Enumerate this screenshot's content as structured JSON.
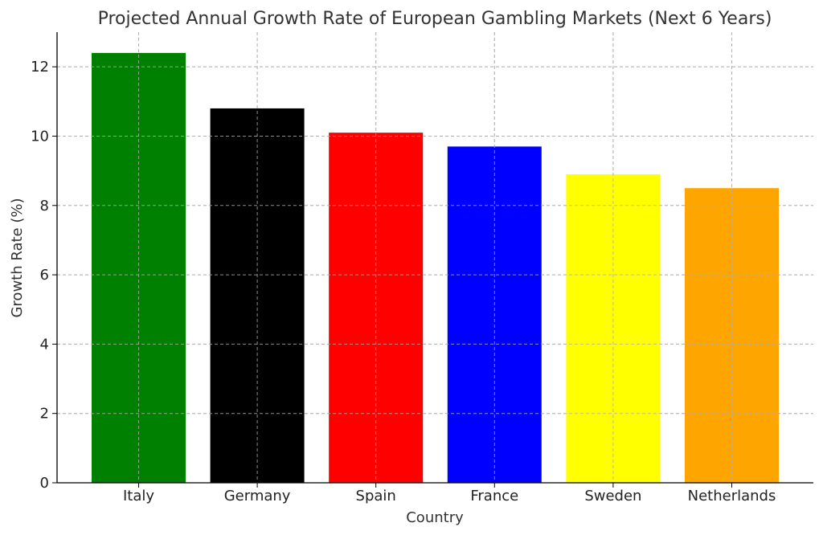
{
  "chart_data": {
    "type": "bar",
    "title": "Projected Annual Growth Rate of European Gambling Markets (Next 6 Years)",
    "xlabel": "Country",
    "ylabel": "Growth Rate (%)",
    "categories": [
      "Italy",
      "Germany",
      "Spain",
      "France",
      "Sweden",
      "Netherlands"
    ],
    "values": [
      12.4,
      10.8,
      10.1,
      9.7,
      8.9,
      8.5
    ],
    "colors": [
      "#008000",
      "#000000",
      "#ff0000",
      "#0000ff",
      "#ffff00",
      "#ffa500"
    ],
    "ylim": [
      0,
      13
    ],
    "yticks": [
      0,
      2,
      4,
      6,
      8,
      10,
      12
    ],
    "grid": true
  }
}
